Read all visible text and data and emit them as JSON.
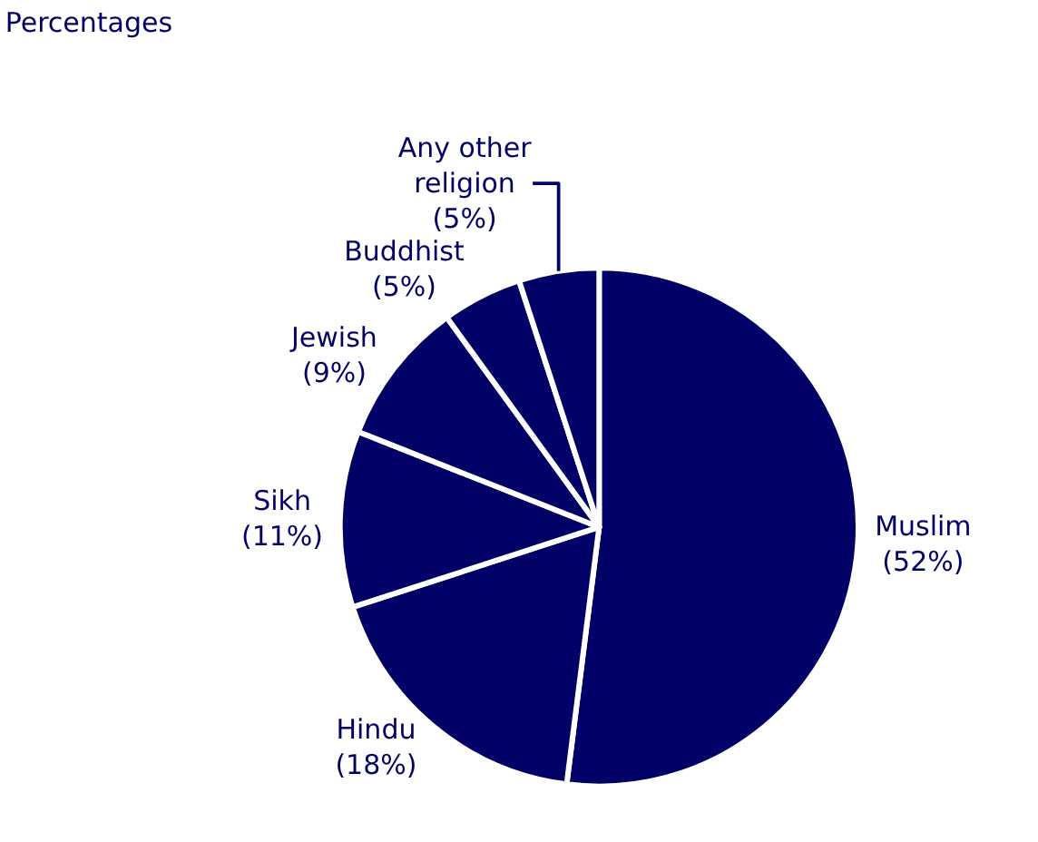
{
  "chart_data": {
    "type": "pie",
    "title": "Percentages",
    "categories": [
      "Muslim",
      "Hindu",
      "Sikh",
      "Jewish",
      "Buddhist",
      "Any other religion"
    ],
    "values": [
      52,
      18,
      11,
      9,
      5,
      5
    ],
    "value_labels": [
      "(52%)",
      "(18%)",
      "(11%)",
      "(9%)",
      "(5%)",
      "(5%)"
    ],
    "colors": [
      "#000066",
      "#000066",
      "#000066",
      "#000066",
      "#000066",
      "#000066"
    ],
    "legend": false
  }
}
